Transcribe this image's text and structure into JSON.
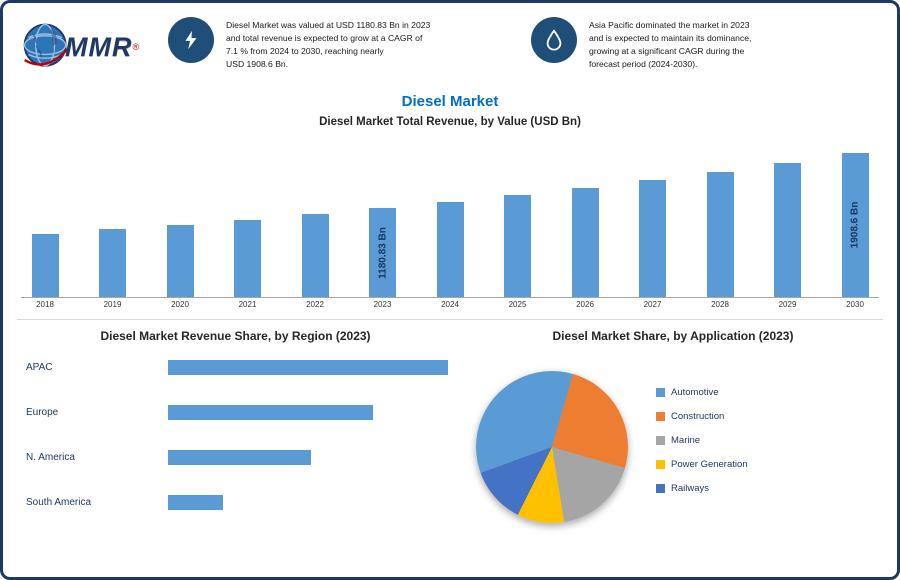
{
  "logo": {
    "text": "MMR",
    "reg": "®"
  },
  "header": {
    "fact1": {
      "lines": [
        "Diesel Market was valued at USD 1180.83 Bn in 2023",
        "and total revenue is expected to grow at a CAGR of",
        "7.1 % from 2024 to 2030, reaching nearly",
        "USD 1908.6 Bn."
      ]
    },
    "fact2": {
      "lines": [
        "Asia Pacific dominated the market in 2023",
        "and is expected to maintain its dominance,",
        "growing at a significant CAGR during the",
        "forecast period (2024-2030)."
      ]
    }
  },
  "colors": {
    "bar": "#5b9bd5",
    "navy": "#1f3864",
    "accent": "#0070c0"
  },
  "chart_data": [
    {
      "type": "bar",
      "title": "Diesel Market",
      "subtitle": "Diesel Market Total Revenue, by Value (USD Bn)",
      "categories": [
        "2018",
        "2019",
        "2020",
        "2021",
        "2022",
        "2023",
        "2024",
        "2025",
        "2026",
        "2027",
        "2028",
        "2029",
        "2030"
      ],
      "values": [
        838,
        898,
        961,
        1030,
        1103,
        1180.83,
        1264.7,
        1354.5,
        1450.8,
        1553.8,
        1664.1,
        1782.2,
        1908.6
      ],
      "ylim": [
        0,
        2100
      ],
      "bar_color": "#5b9bd5",
      "grid": false,
      "labels": [
        {
          "index": 5,
          "text": "1180.83 Bn"
        },
        {
          "index": 12,
          "text": "1908.6 Bn"
        }
      ]
    },
    {
      "type": "bar",
      "orientation": "horizontal",
      "title": "Diesel Market Revenue Share, by Region (2023)",
      "categories": [
        "APAC",
        "Europe",
        "N. America",
        "South America"
      ],
      "values": [
        41,
        30,
        21,
        8
      ],
      "bar_color": "#5b9bd5"
    },
    {
      "type": "pie",
      "title": "Diesel Market Share, by Application (2023)",
      "labels": [
        "Automotive",
        "Construction",
        "Marine",
        "Power Generation",
        "Railways"
      ],
      "values": [
        35,
        25,
        18,
        10,
        12
      ],
      "colors": [
        "#5b9bd5",
        "#ed7d31",
        "#a5a5a5",
        "#ffc000",
        "#4472c4"
      ],
      "start_angle": -110,
      "legend_position": "right"
    }
  ]
}
